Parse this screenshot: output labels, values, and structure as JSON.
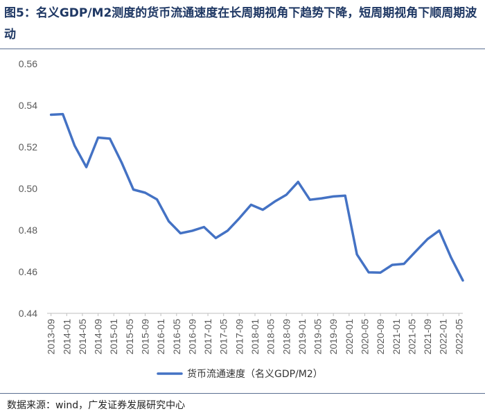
{
  "title": "图5：名义GDP/M2测度的货币流通速度在长周期视角下趋势下降，短周期视角下顺周期波动",
  "source": "数据来源：wind，广发证券发展研究中心",
  "colors": {
    "series": "#4472c4",
    "title": "#1f3864",
    "axis": "#bfbfbf",
    "tick": "#595959"
  },
  "chart_data": {
    "type": "line",
    "ylim": [
      0.44,
      0.56
    ],
    "yticks": [
      "0.44",
      "0.46",
      "0.48",
      "0.50",
      "0.52",
      "0.54",
      "0.56"
    ],
    "x_labels": [
      "2013-09",
      "2014-01",
      "2014-05",
      "2014-09",
      "2015-01",
      "2015-05",
      "2015-09",
      "2016-01",
      "2016-05",
      "2016-09",
      "2017-01",
      "2017-05",
      "2017-09",
      "2018-01",
      "2018-05",
      "2018-09",
      "2019-01",
      "2019-05",
      "2019-09",
      "2020-01",
      "2020-05",
      "2020-09",
      "2021-01",
      "2021-05",
      "2021-09",
      "2022-01",
      "2022-05"
    ],
    "series": [
      {
        "name": "货币流通速度（名义GDP/M2）",
        "points": [
          [
            "2013-09",
            0.5355
          ],
          [
            "2013-12",
            0.5358
          ],
          [
            "2014-03",
            0.5207
          ],
          [
            "2014-06",
            0.5103
          ],
          [
            "2014-09",
            0.5245
          ],
          [
            "2014-12",
            0.524
          ],
          [
            "2015-03",
            0.5125
          ],
          [
            "2015-06",
            0.4995
          ],
          [
            "2015-09",
            0.498
          ],
          [
            "2015-12",
            0.4948
          ],
          [
            "2016-03",
            0.4843
          ],
          [
            "2016-06",
            0.4785
          ],
          [
            "2016-09",
            0.4797
          ],
          [
            "2016-12",
            0.4815
          ],
          [
            "2017-03",
            0.4762
          ],
          [
            "2017-06",
            0.4797
          ],
          [
            "2017-09",
            0.4857
          ],
          [
            "2017-12",
            0.4922
          ],
          [
            "2018-03",
            0.4898
          ],
          [
            "2018-06",
            0.4937
          ],
          [
            "2018-09",
            0.497
          ],
          [
            "2018-12",
            0.5032
          ],
          [
            "2019-03",
            0.4946
          ],
          [
            "2019-06",
            0.4953
          ],
          [
            "2019-09",
            0.4962
          ],
          [
            "2019-12",
            0.4966
          ],
          [
            "2020-03",
            0.4683
          ],
          [
            "2020-06",
            0.4597
          ],
          [
            "2020-09",
            0.4596
          ],
          [
            "2020-12",
            0.4633
          ],
          [
            "2021-03",
            0.4638
          ],
          [
            "2021-06",
            0.4698
          ],
          [
            "2021-09",
            0.4757
          ],
          [
            "2021-12",
            0.4798
          ],
          [
            "2022-03",
            0.4668
          ],
          [
            "2022-06",
            0.4558
          ]
        ]
      }
    ]
  }
}
